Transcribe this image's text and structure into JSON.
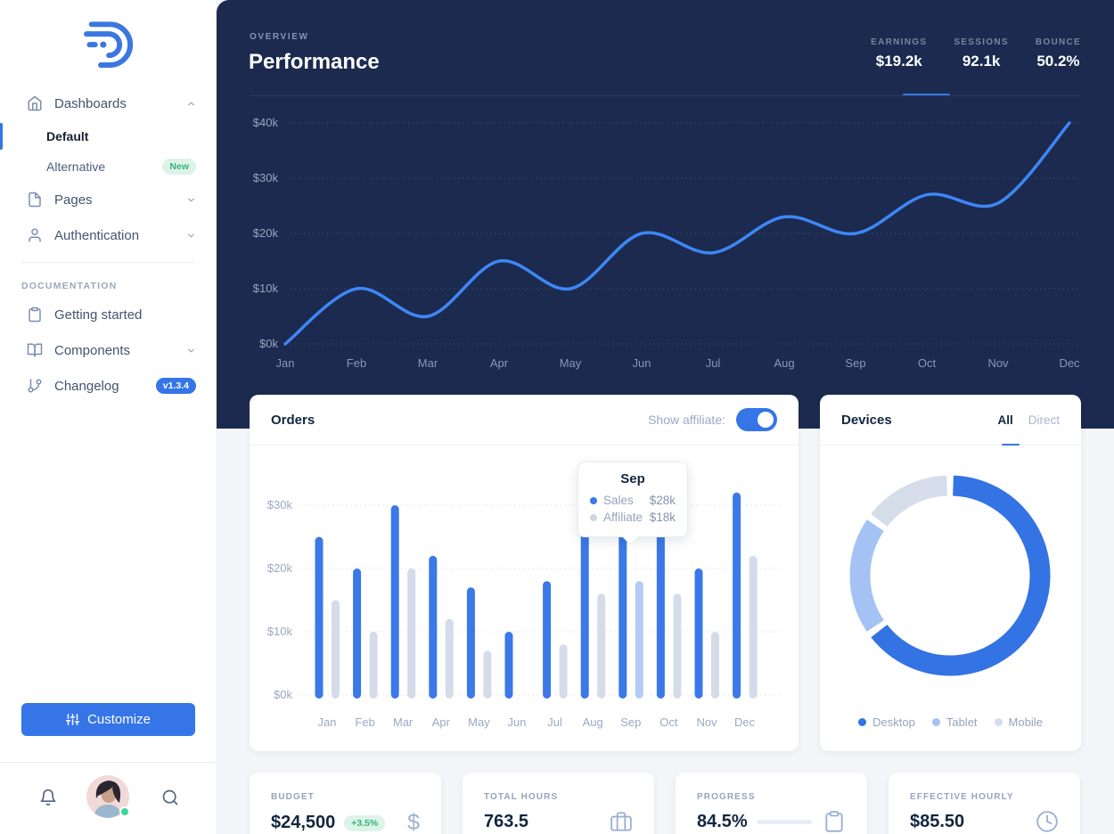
{
  "colors": {
    "navy": "#1b2a4e",
    "accent": "#3575e8",
    "line_blue": "#3e86f5",
    "bar_sales": "#3b78e8",
    "bar_affiliate": "#d4dcea",
    "bar_affiliate_hover": "#b3cbf5",
    "donut_desktop": "#3373e3",
    "donut_tablet": "#a4c3f4",
    "donut_mobile": "#d5ddeb",
    "green_badge_bg": "#dcf4e8",
    "green_badge_text": "#38b27a"
  },
  "sidebar": {
    "nav": [
      {
        "label": "Dashboards"
      },
      {
        "label": "Default"
      },
      {
        "label": "Alternative",
        "badge": "New"
      },
      {
        "label": "Pages"
      },
      {
        "label": "Authentication"
      }
    ],
    "section_label": "DOCUMENTATION",
    "docs": [
      {
        "label": "Getting started"
      },
      {
        "label": "Components"
      },
      {
        "label": "Changelog",
        "badge": "v1.3.4"
      }
    ],
    "customize_label": "Customize"
  },
  "header": {
    "eyebrow": "OVERVIEW",
    "title": "Performance",
    "stats": [
      {
        "label": "EARNINGS",
        "value": "$19.2k",
        "active": true
      },
      {
        "label": "SESSIONS",
        "value": "92.1k"
      },
      {
        "label": "BOUNCE",
        "value": "50.2%"
      }
    ]
  },
  "orders": {
    "title": "Orders",
    "toggle_label": "Show affiliate:",
    "toggle_on": true,
    "tooltip": {
      "title": "Sep",
      "rows": [
        {
          "label": "Sales",
          "value": "$28k"
        },
        {
          "label": "Affiliate",
          "value": "$18k"
        }
      ]
    }
  },
  "devices": {
    "title": "Devices",
    "tabs": [
      {
        "label": "All",
        "active": true
      },
      {
        "label": "Direct"
      }
    ]
  },
  "stat_cards": [
    {
      "label": "BUDGET",
      "value": "$24,500",
      "badge": "+3.5%",
      "icon": "dollar-icon"
    },
    {
      "label": "TOTAL HOURS",
      "value": "763.5",
      "icon": "briefcase-icon"
    },
    {
      "label": "PROGRESS",
      "value": "84.5%",
      "icon": "clipboard-icon",
      "progress_pct": 84.5
    },
    {
      "label": "EFFECTIVE HOURLY",
      "value": "$85.50",
      "icon": "clock-icon"
    }
  ],
  "chart_data": [
    {
      "id": "performance_line",
      "type": "line",
      "title": "Performance (Earnings)",
      "x": [
        "Jan",
        "Feb",
        "Mar",
        "Apr",
        "May",
        "Jun",
        "Jul",
        "Aug",
        "Sep",
        "Oct",
        "Nov",
        "Dec"
      ],
      "series": [
        {
          "name": "Earnings ($k)",
          "values": [
            0,
            10,
            5,
            15,
            10,
            20,
            16.5,
            23,
            20,
            27,
            25.5,
            40
          ]
        }
      ],
      "ytick_labels": [
        "$0k",
        "$10k",
        "$20k",
        "$30k",
        "$40k"
      ],
      "ylim": [
        0,
        40
      ],
      "grid": "dotted-horizontal",
      "legend_position": "none"
    },
    {
      "id": "orders_bars",
      "type": "bar",
      "title": "Orders",
      "categories": [
        "Jan",
        "Feb",
        "Mar",
        "Apr",
        "May",
        "Jun",
        "Jul",
        "Aug",
        "Sep",
        "Oct",
        "Nov",
        "Dec"
      ],
      "series": [
        {
          "name": "Sales",
          "values": [
            25,
            20,
            30,
            22,
            17,
            10,
            18,
            26,
            28,
            26,
            20,
            32
          ]
        },
        {
          "name": "Affiliate",
          "values": [
            15,
            10,
            20,
            12,
            7,
            0,
            8,
            16,
            18,
            16,
            10,
            22
          ]
        }
      ],
      "highlighted_category": "Sep",
      "ytick_labels": [
        "$0k",
        "$10k",
        "$20k",
        "$30k"
      ],
      "ylim": [
        0,
        32
      ],
      "grid": "dotted-horizontal",
      "legend_position": "none"
    },
    {
      "id": "devices_donut",
      "type": "pie",
      "title": "Devices",
      "labels": [
        "Desktop",
        "Tablet",
        "Mobile"
      ],
      "values": [
        65,
        20,
        15
      ],
      "legend_position": "bottom"
    }
  ]
}
